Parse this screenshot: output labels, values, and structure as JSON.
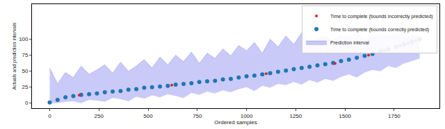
{
  "chart_data": {
    "type": "scatter",
    "x_label": "Ordered samples",
    "y_label": "Actuals and prediction intervals",
    "xlim": [
      -90,
      1980
    ],
    "ylim": [
      -8,
      155
    ],
    "xticks": [
      0,
      250,
      500,
      750,
      1000,
      1250,
      1500,
      1750
    ],
    "yticks": [
      0,
      25,
      50,
      75,
      100
    ],
    "grid": false,
    "legend": "upper right",
    "series": [
      {
        "name": "Prediction interval",
        "type": "band",
        "color": "#8a8af0",
        "x": [
          0,
          40,
          80,
          120,
          160,
          200,
          240,
          280,
          320,
          360,
          400,
          440,
          480,
          520,
          560,
          600,
          640,
          680,
          720,
          760,
          800,
          840,
          880,
          920,
          960,
          1000,
          1040,
          1080,
          1120,
          1160,
          1200,
          1240,
          1280,
          1320,
          1360,
          1400,
          1440,
          1480,
          1520,
          1560,
          1600,
          1640,
          1680,
          1720,
          1760,
          1800,
          1840,
          1880
        ],
        "lower": [
          0,
          0,
          2,
          3,
          0,
          5,
          4,
          2,
          8,
          6,
          3,
          10,
          7,
          12,
          9,
          14,
          11,
          8,
          16,
          13,
          18,
          15,
          20,
          17,
          22,
          25,
          19,
          27,
          24,
          30,
          28,
          33,
          29,
          36,
          32,
          38,
          35,
          41,
          45,
          40,
          48,
          52,
          50,
          58,
          55,
          62,
          66,
          70
        ],
        "upper": [
          55,
          30,
          48,
          40,
          58,
          45,
          52,
          60,
          47,
          64,
          50,
          58,
          68,
          55,
          72,
          60,
          75,
          65,
          80,
          62,
          78,
          70,
          85,
          74,
          90,
          82,
          95,
          78,
          100,
          88,
          105,
          92,
          110,
          96,
          100,
          104,
          98,
          106,
          102,
          108,
          100,
          105,
          107,
          104,
          108,
          106,
          104,
          105
        ]
      },
      {
        "name": "Time to complete (bounds correctly predicted)",
        "type": "scatter",
        "color": "#1f77b4",
        "marker": "circle",
        "x": [
          0,
          40,
          80,
          120,
          160,
          200,
          240,
          280,
          320,
          360,
          400,
          440,
          480,
          520,
          560,
          600,
          640,
          680,
          720,
          760,
          800,
          840,
          880,
          920,
          960,
          1000,
          1040,
          1080,
          1120,
          1160,
          1200,
          1240,
          1280,
          1320,
          1360,
          1400,
          1440,
          1480,
          1520,
          1560,
          1600,
          1640,
          1680,
          1720,
          1760,
          1800,
          1840,
          1880
        ],
        "values": [
          1,
          5,
          9,
          11,
          13,
          14,
          15,
          17,
          18,
          19,
          21,
          22,
          24,
          25,
          26,
          27,
          29,
          30,
          31,
          33,
          34,
          35,
          37,
          38,
          40,
          42,
          43,
          45,
          47,
          49,
          51,
          53,
          55,
          57,
          59,
          61,
          63,
          66,
          68,
          71,
          74,
          77,
          81,
          84,
          88,
          92,
          96,
          100
        ]
      },
      {
        "name": "Time to complete (bounds incorrectly predicted)",
        "type": "scatter",
        "color": "#d62728",
        "marker": "circle",
        "x": [
          150,
          620,
          1100,
          1450,
          1620,
          1700,
          1780,
          1820,
          1860
        ],
        "values": [
          12.5,
          28,
          46,
          62,
          75,
          82,
          90,
          94,
          98
        ]
      }
    ]
  }
}
